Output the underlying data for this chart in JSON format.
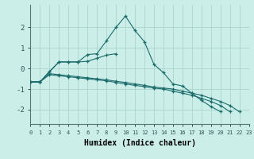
{
  "xlabel": "Humidex (Indice chaleur)",
  "background_color": "#cceee8",
  "grid_color": "#aad4ce",
  "line_color": "#1a6b6b",
  "x_values": [
    0,
    1,
    2,
    3,
    4,
    5,
    6,
    7,
    8,
    9,
    10,
    11,
    12,
    13,
    14,
    15,
    16,
    17,
    18,
    19,
    20,
    21,
    22,
    23
  ],
  "line1": [
    -0.65,
    -0.65,
    -0.15,
    0.32,
    0.32,
    0.32,
    0.68,
    0.72,
    1.35,
    2.0,
    2.55,
    1.85,
    1.3,
    0.2,
    -0.2,
    -0.75,
    -0.85,
    -1.2,
    -1.55,
    -1.85,
    -2.1,
    null,
    null,
    null
  ],
  "line2": [
    -0.65,
    -0.65,
    -0.15,
    0.32,
    0.32,
    0.32,
    0.35,
    0.5,
    0.65,
    0.72,
    null,
    null,
    null,
    null,
    null,
    null,
    null,
    null,
    null,
    null,
    null,
    null,
    null,
    null
  ],
  "line3": [
    -0.65,
    -0.65,
    -0.25,
    -0.3,
    -0.35,
    -0.4,
    -0.45,
    -0.5,
    -0.55,
    -0.62,
    -0.68,
    -0.75,
    -0.82,
    -0.9,
    -0.95,
    -1.0,
    -1.1,
    -1.2,
    -1.3,
    -1.45,
    -1.6,
    -1.8,
    -2.1,
    null
  ],
  "line4": [
    -0.65,
    -0.65,
    -0.3,
    -0.35,
    -0.4,
    -0.45,
    -0.5,
    -0.55,
    -0.6,
    -0.68,
    -0.75,
    -0.82,
    -0.88,
    -0.95,
    -1.0,
    -1.1,
    -1.2,
    -1.3,
    -1.45,
    -1.6,
    -1.8,
    -2.1,
    null,
    null
  ],
  "ylim": [
    -2.7,
    3.1
  ],
  "xlim": [
    0,
    23
  ],
  "yticks": [
    -2,
    -1,
    0,
    1,
    2
  ],
  "xticks": [
    0,
    1,
    2,
    3,
    4,
    5,
    6,
    7,
    8,
    9,
    10,
    11,
    12,
    13,
    14,
    15,
    16,
    17,
    18,
    19,
    20,
    21,
    22,
    23
  ]
}
